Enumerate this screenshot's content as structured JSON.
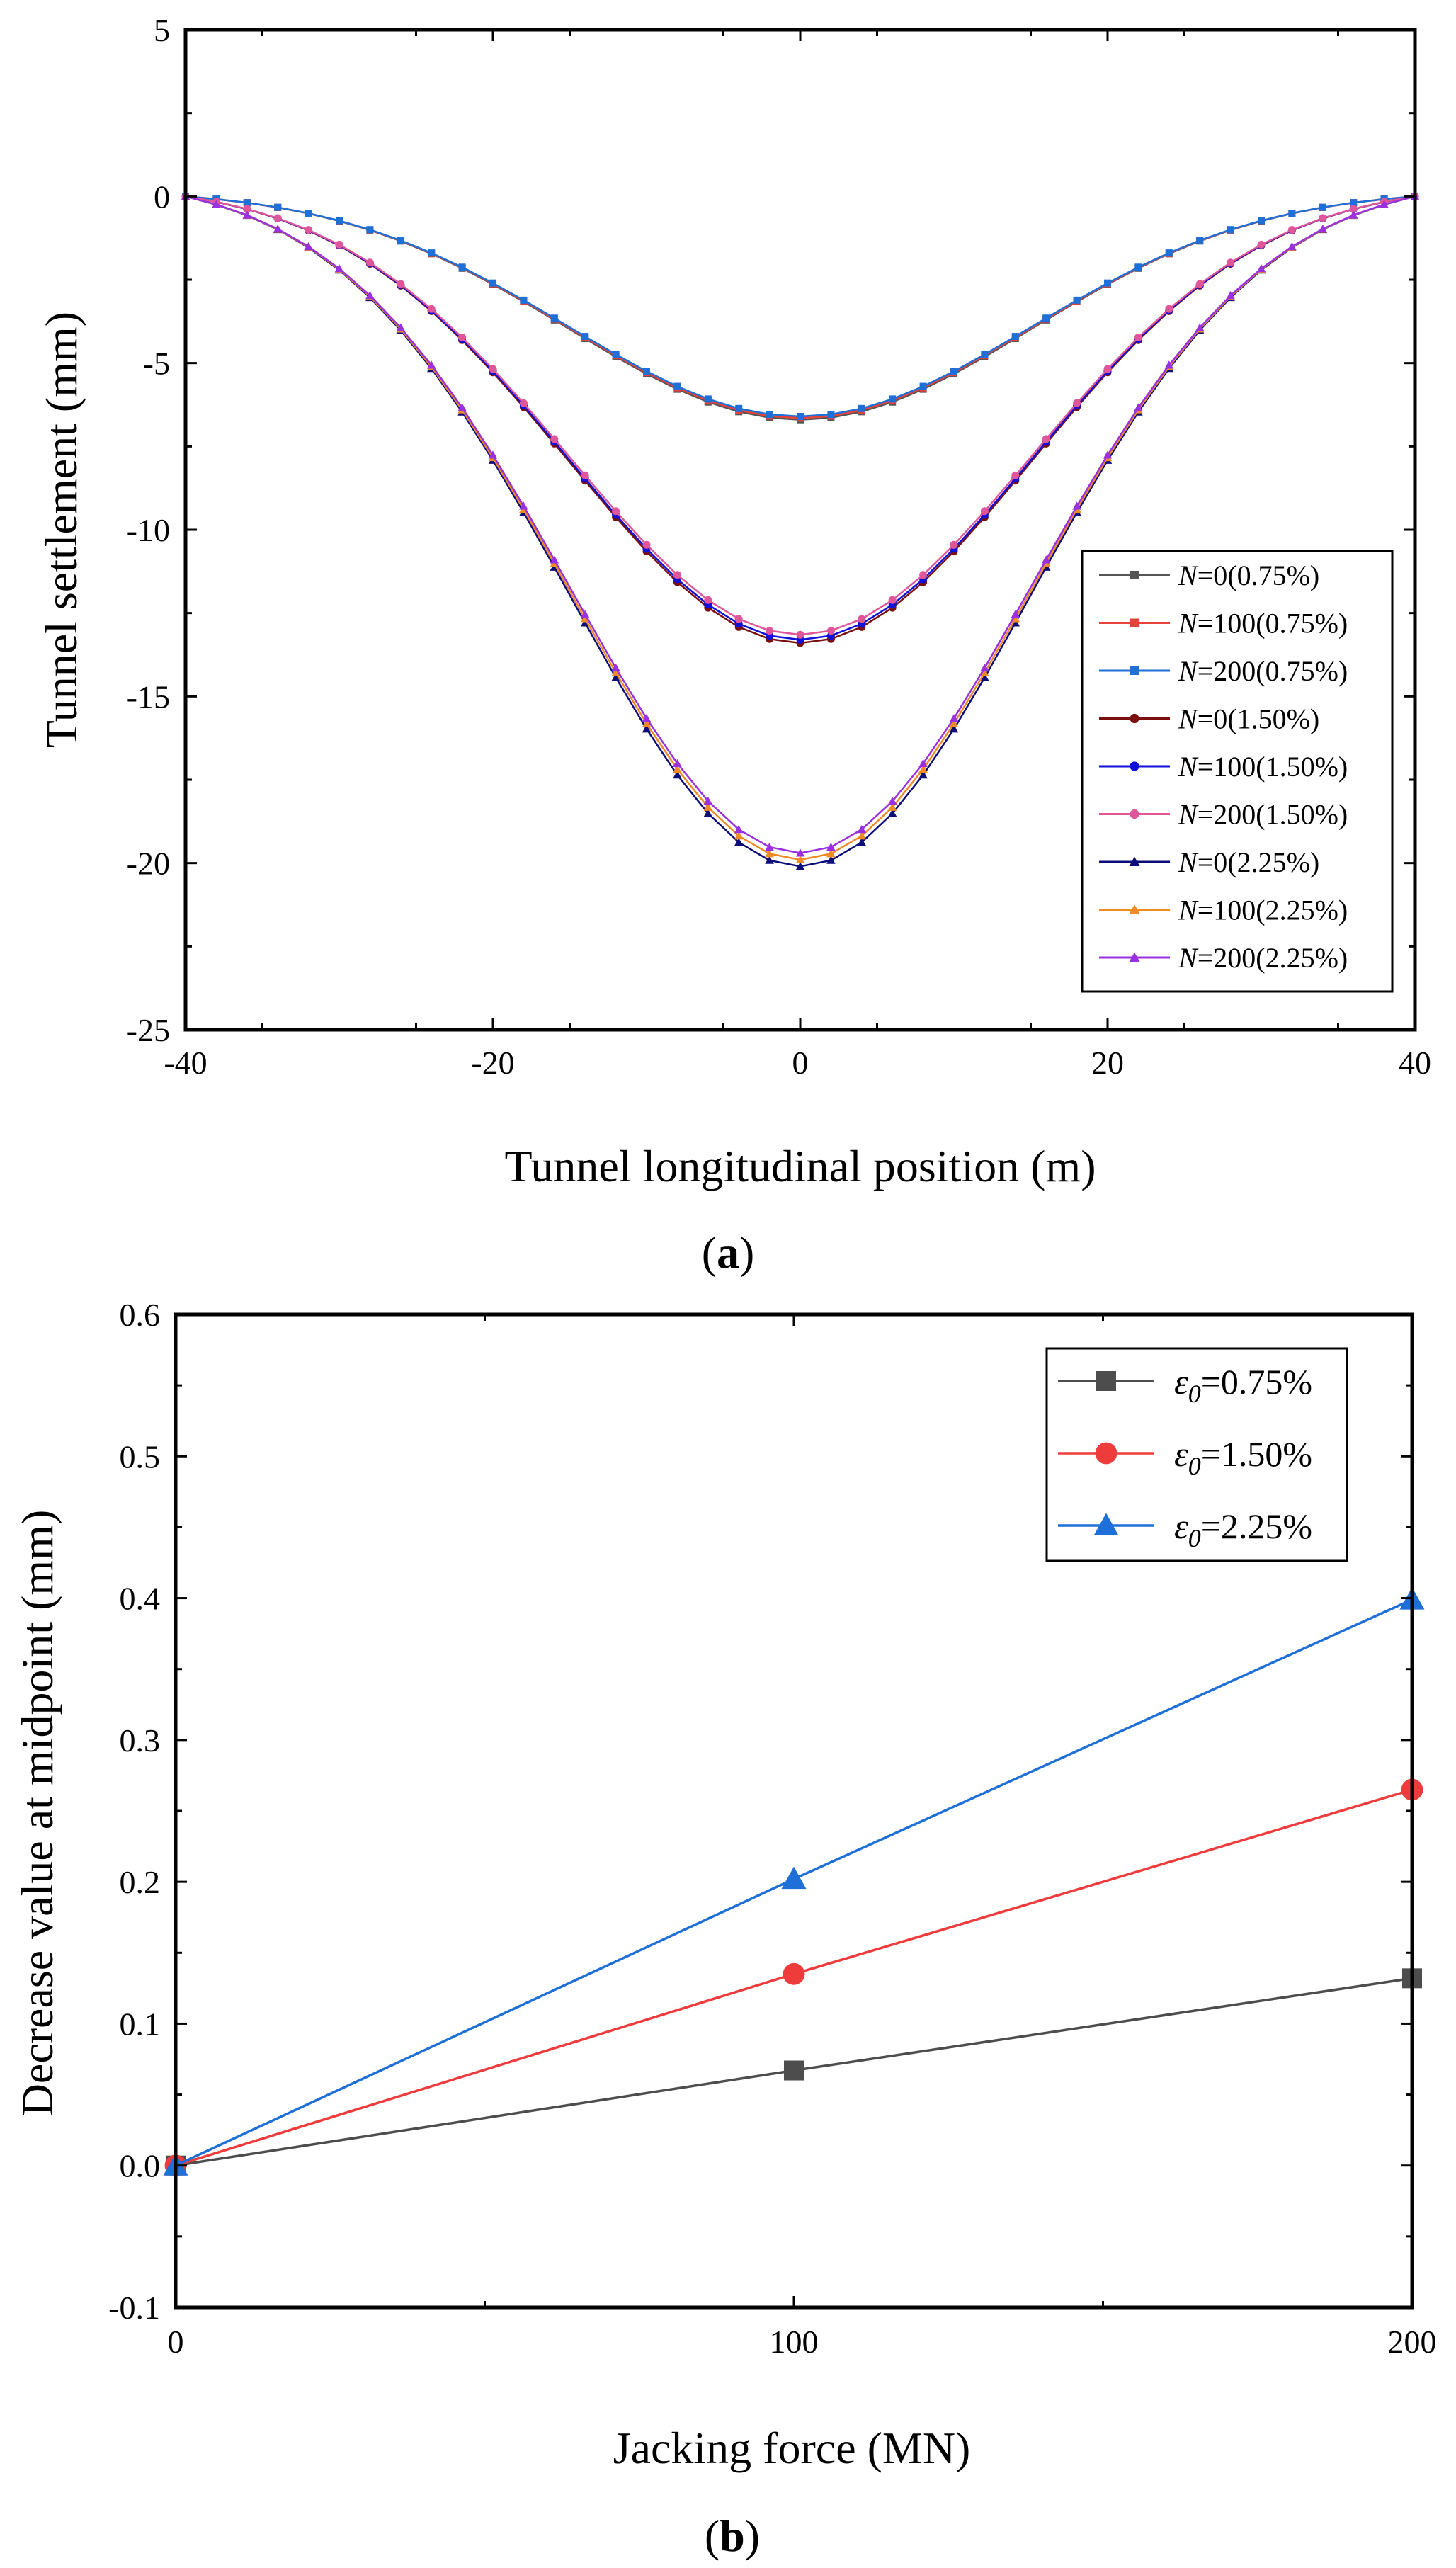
{
  "chart_data": [
    {
      "id": "a",
      "type": "line",
      "caption_letter": "a",
      "xlabel": "Tunnel longitudinal position (m)",
      "ylabel": "Tunnel settlement (mm)",
      "xlim": [
        -40,
        40
      ],
      "ylim": [
        -25,
        5
      ],
      "xticks": [
        -40,
        -20,
        0,
        20,
        40
      ],
      "xtick_labels": [
        "-40",
        "-20",
        "0",
        "20",
        "40"
      ],
      "yticks": [
        5,
        0,
        -5,
        -10,
        -15,
        -20,
        -25
      ],
      "ytick_labels": [
        "5",
        "0",
        "-5",
        "-10",
        "-15",
        "-20",
        "-25"
      ],
      "legend_position": "right",
      "x_range": [
        -40,
        40
      ],
      "x_step": 2,
      "series": [
        {
          "name": "N=0(0.75%)",
          "label_prefix": "N",
          "label_suffix": "=0(0.75%)",
          "color": "#555555",
          "marker": "square",
          "min": -6.7,
          "width": 15
        },
        {
          "name": "N=100(0.75%)",
          "label_prefix": "N",
          "label_suffix": "=100(0.75%)",
          "color": "#e8413a",
          "marker": "square",
          "min": -6.65,
          "width": 15
        },
        {
          "name": "N=200(0.75%)",
          "label_prefix": "N",
          "label_suffix": "=200(0.75%)",
          "color": "#1f6fd8",
          "marker": "square",
          "min": -6.6,
          "width": 15
        },
        {
          "name": "N=0(1.50%)",
          "label_prefix": "N",
          "label_suffix": "=0(1.50%)",
          "color": "#7a1010",
          "marker": "circle",
          "min": -13.4,
          "width": 15
        },
        {
          "name": "N=100(1.50%)",
          "label_prefix": "N",
          "label_suffix": "=100(1.50%)",
          "color": "#1010d8",
          "marker": "circle",
          "min": -13.3,
          "width": 15
        },
        {
          "name": "N=200(1.50%)",
          "label_prefix": "N",
          "label_suffix": "=200(1.50%)",
          "color": "#e0569a",
          "marker": "circle",
          "min": -13.15,
          "width": 15
        },
        {
          "name": "N=0(2.25%)",
          "label_prefix": "N",
          "label_suffix": "=0(2.25%)",
          "color": "#0d0d7a",
          "marker": "triangle",
          "min": -20.1,
          "width": 15
        },
        {
          "name": "N=100(2.25%)",
          "label_prefix": "N",
          "label_suffix": "=100(2.25%)",
          "color": "#f08a24",
          "marker": "triangle",
          "min": -19.9,
          "width": 15
        },
        {
          "name": "N=200(2.25%)",
          "label_prefix": "N",
          "label_suffix": "=200(2.25%)",
          "color": "#9b30e0",
          "marker": "triangle",
          "min": -19.7,
          "width": 15
        }
      ]
    },
    {
      "id": "b",
      "type": "line",
      "caption_letter": "b",
      "xlabel": "Jacking force (MN)",
      "ylabel": "Decrease value at midpoint (mm)",
      "xlim": [
        0,
        200
      ],
      "ylim": [
        -0.1,
        0.6
      ],
      "xticks": [
        0,
        100,
        200
      ],
      "xtick_labels": [
        "0",
        "100",
        "200"
      ],
      "yticks": [
        0.6,
        0.5,
        0.4,
        0.3,
        0.2,
        0.1,
        0.0,
        -0.1
      ],
      "ytick_labels": [
        "0.6",
        "0.5",
        "0.4",
        "0.3",
        "0.2",
        "0.1",
        "0.0",
        "-0.1"
      ],
      "legend_position": "top-right",
      "x": [
        0,
        100,
        200
      ],
      "series": [
        {
          "name": "ε0=0.75%",
          "label_main": "ε",
          "label_sub": "0",
          "label_suffix": "=0.75%",
          "color": "#4d4d4d",
          "marker": "square",
          "values": [
            0,
            0.067,
            0.132
          ]
        },
        {
          "name": "ε0=1.50%",
          "label_main": "ε",
          "label_sub": "0",
          "label_suffix": "=1.50%",
          "color": "#ee3b3b",
          "marker": "circle",
          "values": [
            0,
            0.135,
            0.265
          ]
        },
        {
          "name": "ε0=2.25%",
          "label_main": "ε",
          "label_sub": "0",
          "label_suffix": "=2.25%",
          "color": "#1f6fd8",
          "marker": "triangle",
          "values": [
            0,
            0.202,
            0.399
          ]
        }
      ]
    }
  ]
}
